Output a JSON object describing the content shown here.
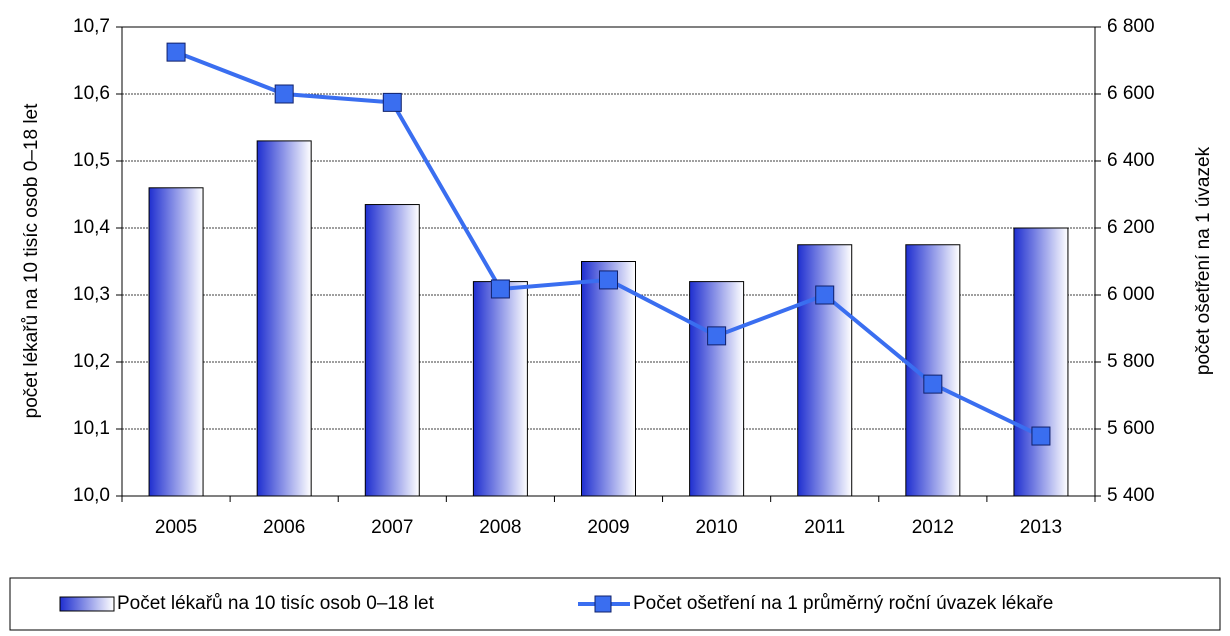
{
  "chart_data": {
    "type": "bar-line",
    "categories": [
      "2005",
      "2006",
      "2007",
      "2008",
      "2009",
      "2010",
      "2011",
      "2012",
      "2013"
    ],
    "series": [
      {
        "name": "Počet lékařů na 10 tisíc osob 0–18 let",
        "type": "bar",
        "color": "#1f2fd0",
        "values": [
          10.46,
          10.53,
          10.435,
          10.32,
          10.35,
          10.32,
          10.375,
          10.375,
          10.4
        ]
      },
      {
        "name": "Počet ošetření na 1 průměrný roční úvazek lékaře",
        "type": "line",
        "axis": "y2",
        "color": "#3a6ef0",
        "values": [
          6725,
          6600,
          6575,
          6018,
          6045,
          5878,
          6000,
          5734,
          5579
        ]
      }
    ],
    "ylabel": "počet lékařů na 10 tisíc osob 0–18 let",
    "y2label": "počet ošetření na 1 úvazek",
    "ylim": [
      10.0,
      10.7
    ],
    "yticks": [
      {
        "value": 10.0,
        "label": "10,0"
      },
      {
        "value": 10.1,
        "label": "10,1"
      },
      {
        "value": 10.2,
        "label": "10,2"
      },
      {
        "value": 10.3,
        "label": "10,3"
      },
      {
        "value": 10.4,
        "label": "10,4"
      },
      {
        "value": 10.5,
        "label": "10,5"
      },
      {
        "value": 10.6,
        "label": "10,6"
      },
      {
        "value": 10.7,
        "label": "10,7"
      }
    ],
    "y2lim": [
      5400,
      6800
    ],
    "y2ticks": [
      {
        "value": 5400,
        "label": "5 400"
      },
      {
        "value": 5600,
        "label": "5 600"
      },
      {
        "value": 5800,
        "label": "5 800"
      },
      {
        "value": 6000,
        "label": "6 000"
      },
      {
        "value": 6200,
        "label": "6 200"
      },
      {
        "value": 6400,
        "label": "6 400"
      },
      {
        "value": 6600,
        "label": "6 600"
      },
      {
        "value": 6800,
        "label": "6 800"
      }
    ],
    "grid": true,
    "legend": "bottom"
  }
}
